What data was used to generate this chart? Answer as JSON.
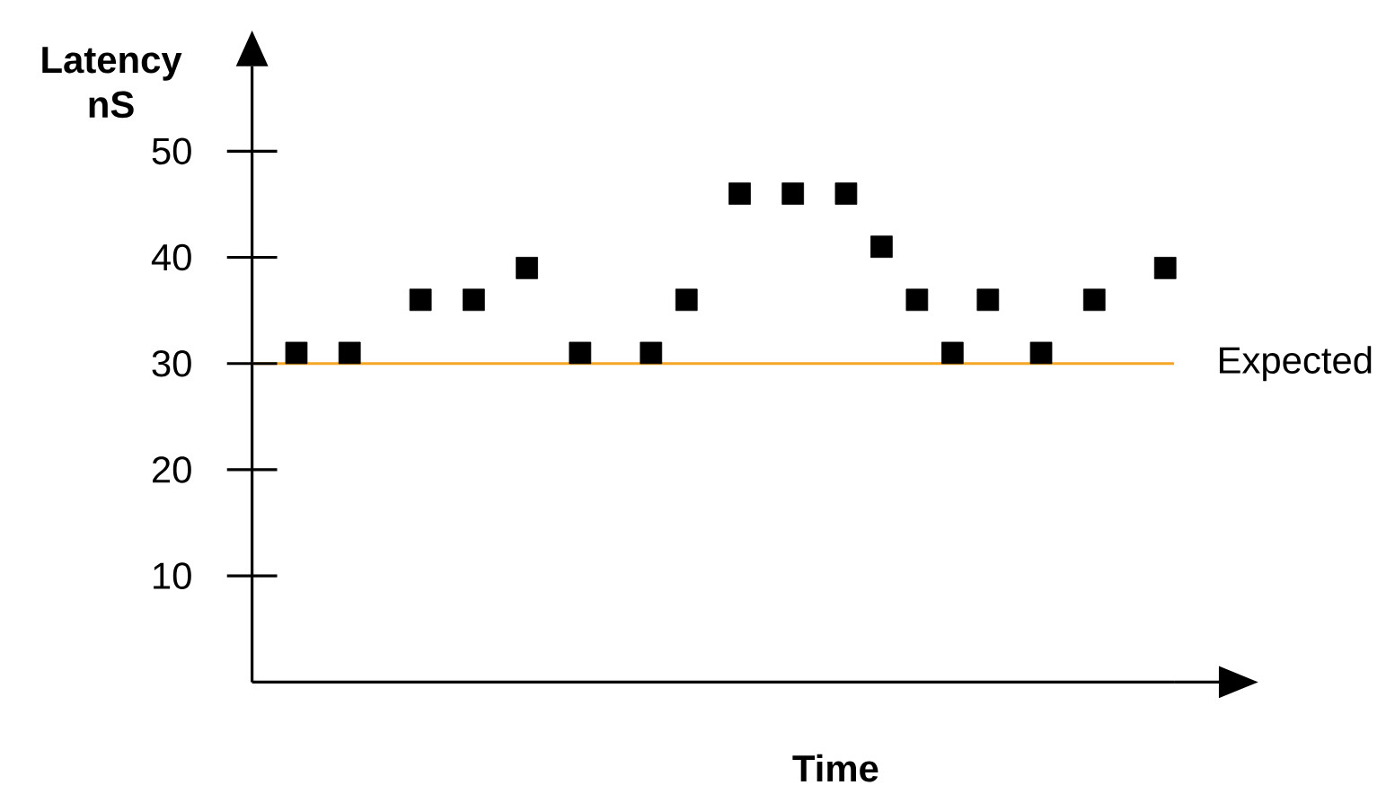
{
  "chart_data": {
    "type": "scatter",
    "xlabel": "Time",
    "ylabel": "Latency nS",
    "marker": "square",
    "color": "#000000",
    "categories": [
      null,
      null,
      null,
      null,
      null,
      null,
      null,
      null,
      null,
      null,
      null,
      null,
      null,
      null,
      null,
      null,
      null,
      null,
      null,
      null,
      null,
      null,
      null,
      null,
      null,
      null,
      null,
      null,
      null,
      null,
      null,
      null,
      null,
      null,
      null,
      null,
      null,
      null,
      null,
      null,
      null,
      null,
      null,
      null,
      null,
      null,
      null,
      null,
      null,
      null,
      null,
      null
    ],
    "values": [
      null,
      null,
      31,
      null,
      null,
      31,
      null,
      null,
      null,
      36,
      null,
      null,
      36,
      null,
      null,
      39,
      null,
      null,
      31,
      null,
      null,
      null,
      31,
      null,
      36,
      null,
      null,
      46,
      null,
      null,
      46,
      null,
      null,
      46,
      null,
      41,
      null,
      36,
      null,
      31,
      null,
      36,
      null,
      null,
      31,
      null,
      null,
      36,
      null,
      null,
      null,
      39
    ],
    "ylim": [
      0,
      58
    ],
    "yticks": [
      10,
      20,
      30,
      40,
      50
    ],
    "ref_lines": [
      {
        "axis": "y",
        "value": 30,
        "label": "Expected",
        "color": "#f5a623"
      }
    ]
  }
}
